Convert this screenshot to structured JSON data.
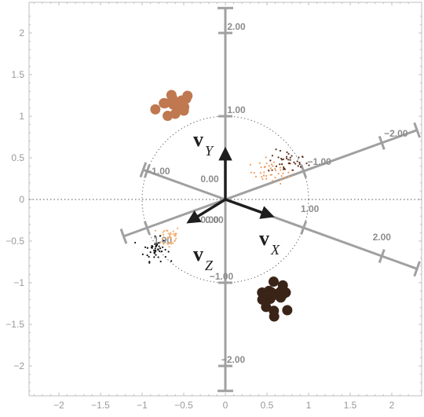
{
  "chart_data": {
    "type": "scatter",
    "title": "",
    "xlabel": "",
    "ylabel": "",
    "xlim": [
      -2.35,
      2.3
    ],
    "ylim": [
      -2.38,
      2.35
    ],
    "grid": false,
    "x_ticks": [
      {
        "value": -2,
        "label": "−2"
      },
      {
        "value": -1.5,
        "label": "−1.5"
      },
      {
        "value": -1,
        "label": "−1"
      },
      {
        "value": -0.5,
        "label": "−0.5"
      },
      {
        "value": 0,
        "label": "0"
      },
      {
        "value": 0.5,
        "label": "0.5"
      },
      {
        "value": 1,
        "label": "1"
      },
      {
        "value": 1.5,
        "label": "1.5"
      },
      {
        "value": 2,
        "label": "2"
      }
    ],
    "y_ticks": [
      {
        "value": -2,
        "label": "−2"
      },
      {
        "value": -1.5,
        "label": "−1.5"
      },
      {
        "value": -1,
        "label": "−1"
      },
      {
        "value": -0.5,
        "label": "−0.5"
      },
      {
        "value": 0,
        "label": "0"
      },
      {
        "value": 0.5,
        "label": "0.5"
      },
      {
        "value": 1,
        "label": "1"
      },
      {
        "value": 1.5,
        "label": "1.5"
      },
      {
        "value": 2,
        "label": "2"
      }
    ],
    "unit_circle_radius": 1,
    "projected_axes": [
      {
        "name": "X",
        "dir": [
          0.94,
          -0.34
        ],
        "labels": [
          {
            "t": -1.0,
            "text": "−1.00"
          },
          {
            "t": 0.0,
            "text": "0.00"
          },
          {
            "t": 1.0,
            "text": "1.00"
          },
          {
            "t": 2.0,
            "text": "2.00"
          }
        ]
      },
      {
        "name": "Y",
        "dir": [
          0.0,
          1.0
        ],
        "labels": [
          {
            "t": -2.0,
            "text": "−2.00"
          },
          {
            "t": -1.0,
            "text": "−1.00"
          },
          {
            "t": 0.0,
            "text": "0.00"
          },
          {
            "t": 1.0,
            "text": "1.00"
          },
          {
            "t": 2.0,
            "text": "2.00"
          }
        ]
      },
      {
        "name": "Z",
        "dir": [
          -0.94,
          -0.34
        ],
        "labels": [
          {
            "t": -2.0,
            "text": "−2.00"
          },
          {
            "t": -1.0,
            "text": "−1.00"
          },
          {
            "t": 0.0,
            "text": "0.00"
          },
          {
            "t": 1.0,
            "text": "1.00"
          }
        ]
      }
    ],
    "vectors": [
      {
        "name": "X",
        "tip": [
          0.56,
          -0.2
        ],
        "label_main": "v",
        "label_sub": "X"
      },
      {
        "name": "Y",
        "tip": [
          0.0,
          0.6
        ],
        "label_main": "v",
        "label_sub": "Y"
      },
      {
        "name": "Z",
        "tip": [
          -0.44,
          -0.27
        ],
        "label_main": "v",
        "label_sub": "Z"
      }
    ],
    "clusters": [
      {
        "name": "light-brown-blob",
        "color": "#c07850",
        "center": [
          -0.6,
          1.13
        ],
        "spread": [
          0.13,
          0.1
        ],
        "count": 16,
        "size": "large"
      },
      {
        "name": "dark-brown-blob",
        "color": "#3a2418",
        "center": [
          0.62,
          -1.17
        ],
        "spread": [
          0.12,
          0.1
        ],
        "count": 18,
        "size": "large"
      },
      {
        "name": "orange-dots-upper",
        "color": "#f0a060",
        "center": [
          0.57,
          0.33
        ],
        "spread": [
          0.13,
          0.07
        ],
        "count": 45,
        "size": "small"
      },
      {
        "name": "brown-dots-upper",
        "color": "#5a3020",
        "center": [
          0.75,
          0.45
        ],
        "spread": [
          0.12,
          0.07
        ],
        "count": 40,
        "size": "small"
      },
      {
        "name": "orange-dots-lower",
        "color": "#f0b070",
        "center": [
          -0.68,
          -0.45
        ],
        "spread": [
          0.07,
          0.07
        ],
        "count": 40,
        "size": "small"
      },
      {
        "name": "black-dots-lower",
        "color": "#111111",
        "center": [
          -0.84,
          -0.6
        ],
        "spread": [
          0.07,
          0.07
        ],
        "count": 45,
        "size": "small"
      }
    ],
    "colors": {
      "frame": "#bfbfbf",
      "axis_line": "#a0a0a0",
      "vector": "#1e1e1e",
      "dotted": "#555555"
    }
  }
}
